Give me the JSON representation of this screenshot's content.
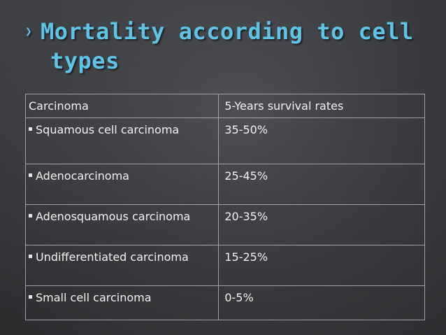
{
  "slide": {
    "title_bullet": "❯",
    "title_line1": "Mortality according to cell",
    "title_line2": "types"
  },
  "table": {
    "headers": [
      "Carcinoma",
      "5-Years survival rates"
    ],
    "rows": [
      {
        "type": "Squamous cell carcinoma",
        "rate": "35-50%"
      },
      {
        "type": "Adenocarcinoma",
        "rate": "25-45%"
      },
      {
        "type": "Adenosquamous carcinoma",
        "rate": "20-35%"
      },
      {
        "type": "Undifferentiated carcinoma",
        "rate": "15-25%"
      },
      {
        "type": "Small cell carcinoma",
        "rate": "0-5%"
      }
    ]
  },
  "colors": {
    "title": "#5fc3e8",
    "text": "#f2f2f2",
    "border": "#9fa3a8",
    "background": "#3a3c3f"
  }
}
